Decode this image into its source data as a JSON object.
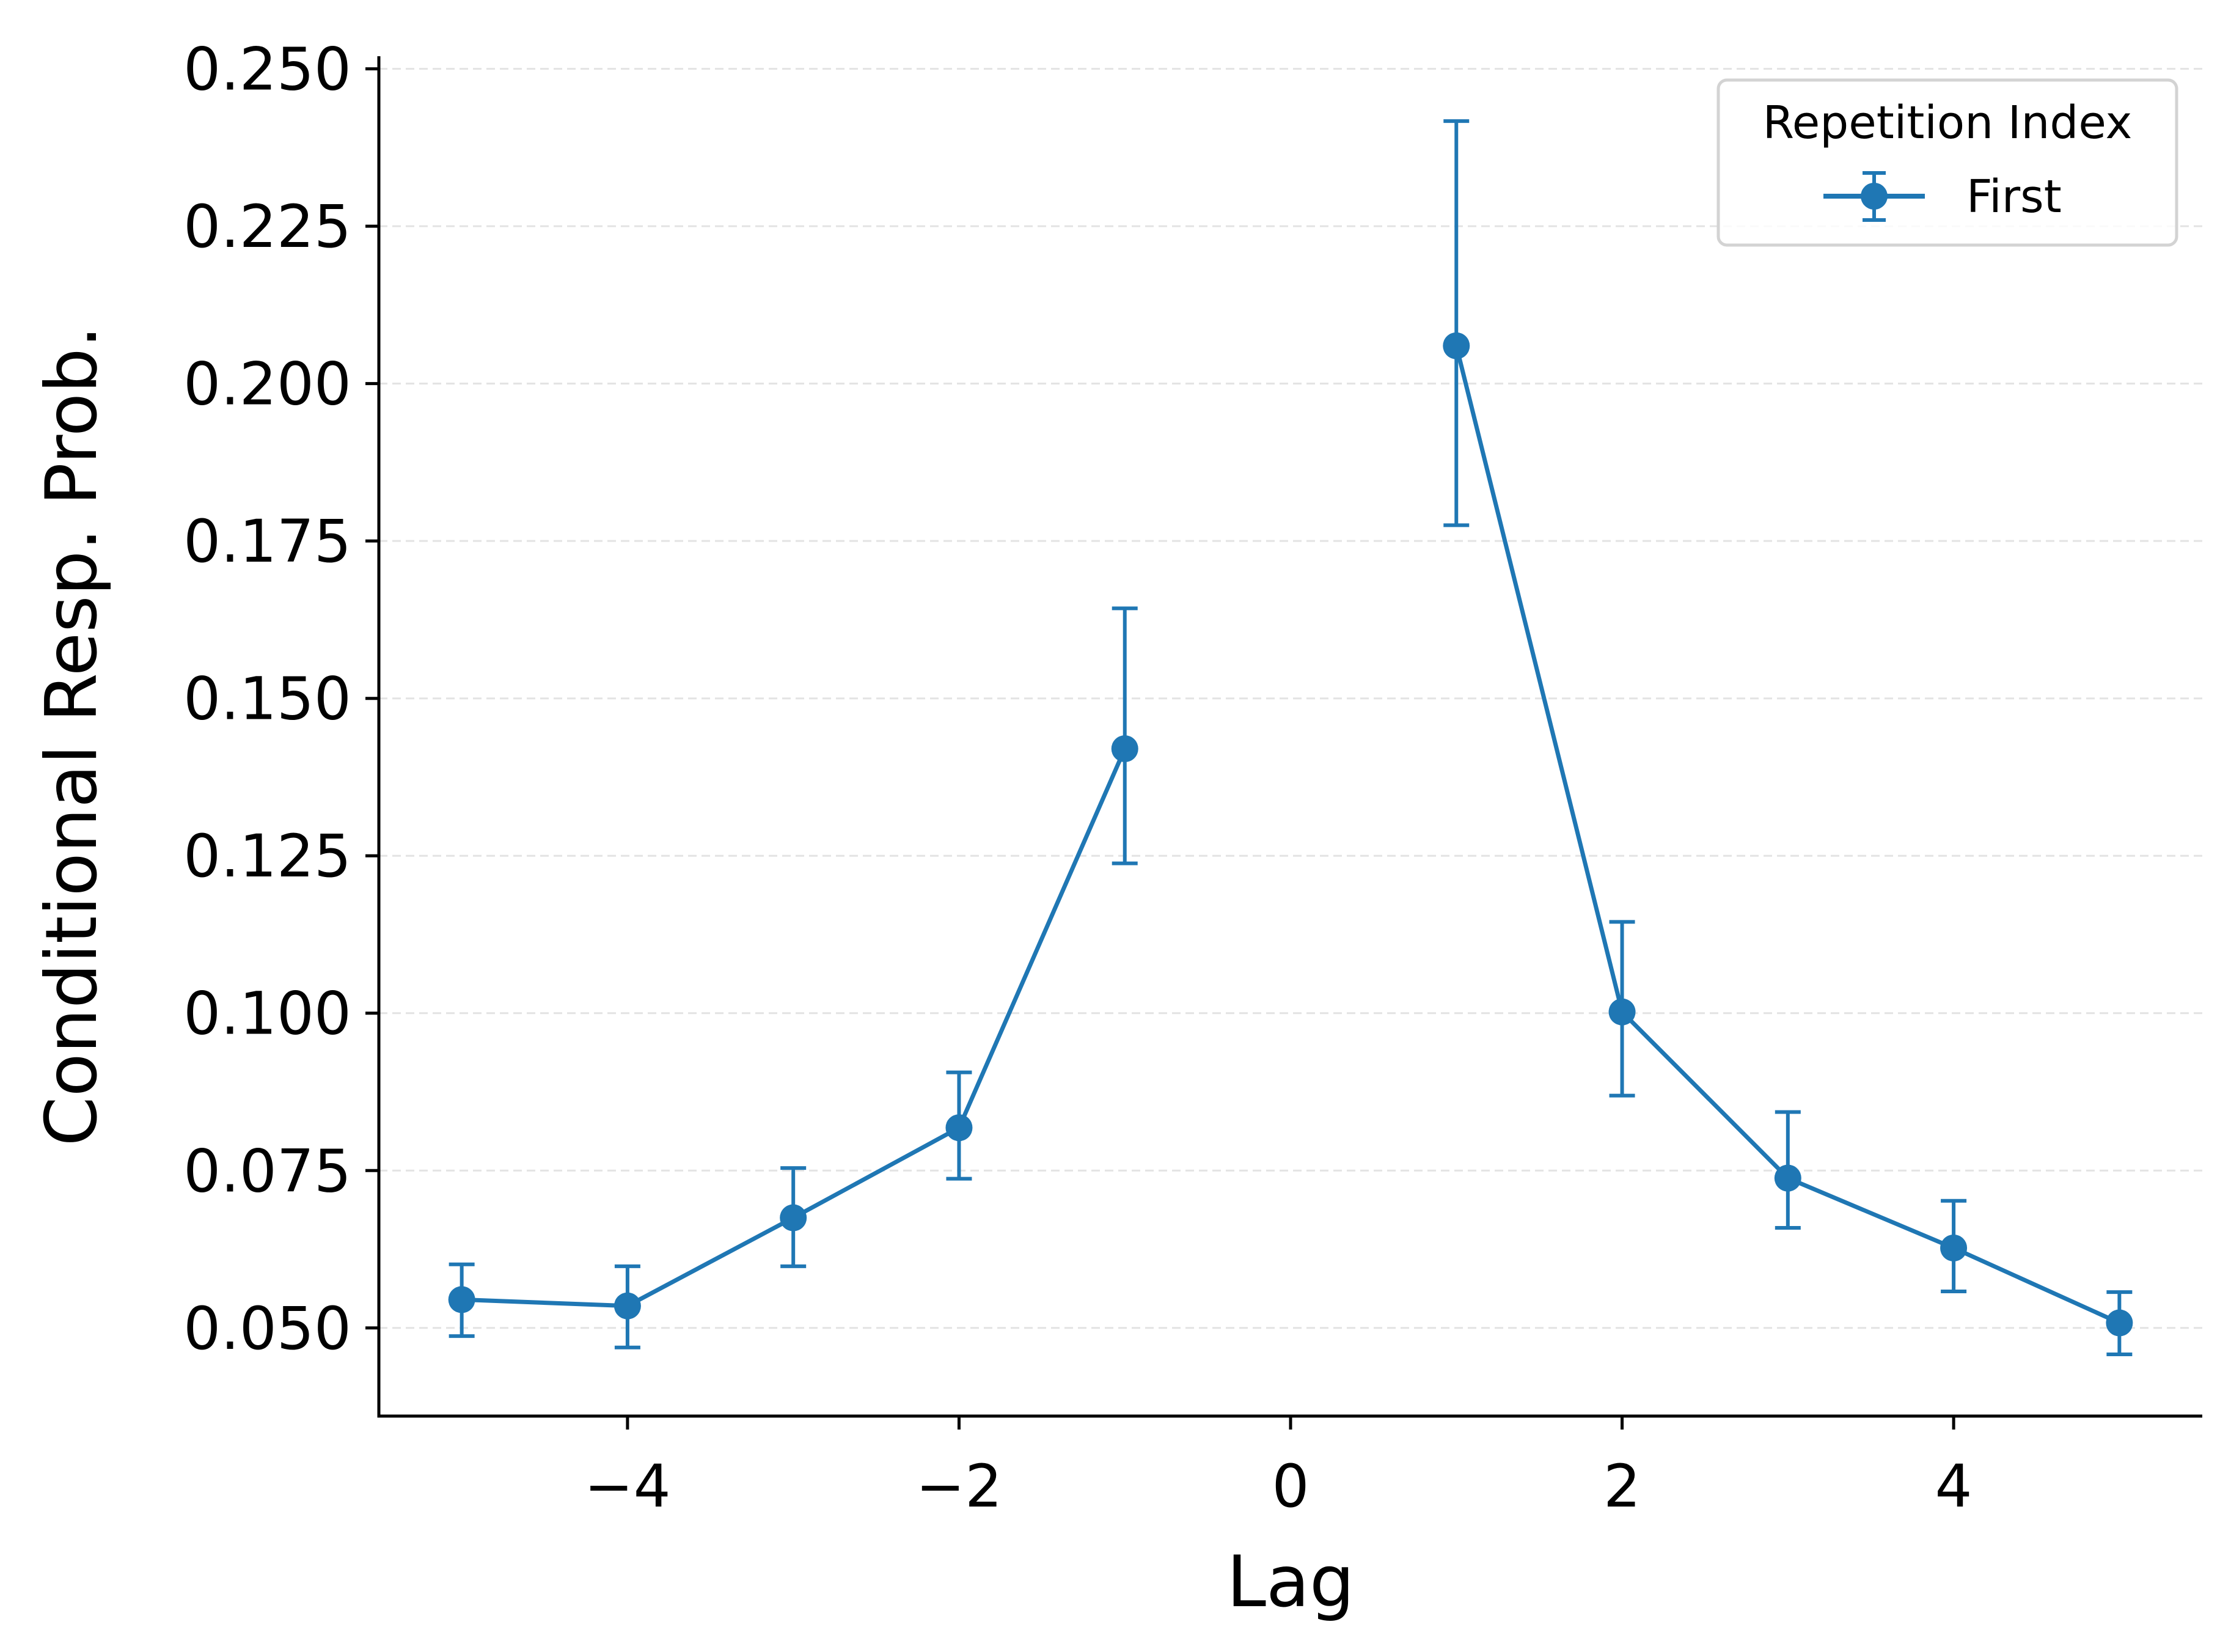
{
  "chart_data": {
    "type": "line",
    "title": "",
    "xlabel": "Lag",
    "ylabel": "Conditional Resp. Prob.",
    "xlim": [
      -5.5,
      5.5
    ],
    "ylim": [
      0.036,
      0.252
    ],
    "x_ticks": [
      -4,
      -2,
      0,
      2,
      4
    ],
    "x_tick_labels": [
      "−4",
      "−2",
      "0",
      "2",
      "4"
    ],
    "y_ticks": [
      0.05,
      0.075,
      0.1,
      0.125,
      0.15,
      0.175,
      0.2,
      0.225,
      0.25
    ],
    "y_tick_labels": [
      "0.050",
      "0.075",
      "0.100",
      "0.125",
      "0.150",
      "0.175",
      "0.200",
      "0.225",
      "0.250"
    ],
    "grid": "horizontal dashed",
    "legend": {
      "title": "Repetition Index",
      "placement": "top-right"
    },
    "series": [
      {
        "name": "First",
        "color": "#1f77b4",
        "segments": [
          {
            "x": [
              -5,
              -4,
              -3,
              -2,
              -1
            ],
            "y": [
              0.0545,
              0.0535,
              0.0675,
              0.0818,
              0.142
            ],
            "err_low": [
              0.0487,
              0.0469,
              0.0598,
              0.0737,
              0.1238
            ],
            "err_high": [
              0.0601,
              0.0598,
              0.0754,
              0.0906,
              0.1643
            ]
          },
          {
            "x": [
              1,
              2,
              3,
              4,
              5
            ],
            "y": [
              0.206,
              0.1002,
              0.0738,
              0.0627,
              0.0508
            ],
            "err_low": [
              0.1775,
              0.0869,
              0.0659,
              0.0558,
              0.0458
            ],
            "err_high": [
              0.2417,
              0.1145,
              0.0843,
              0.0702,
              0.0557
            ]
          }
        ]
      }
    ]
  }
}
